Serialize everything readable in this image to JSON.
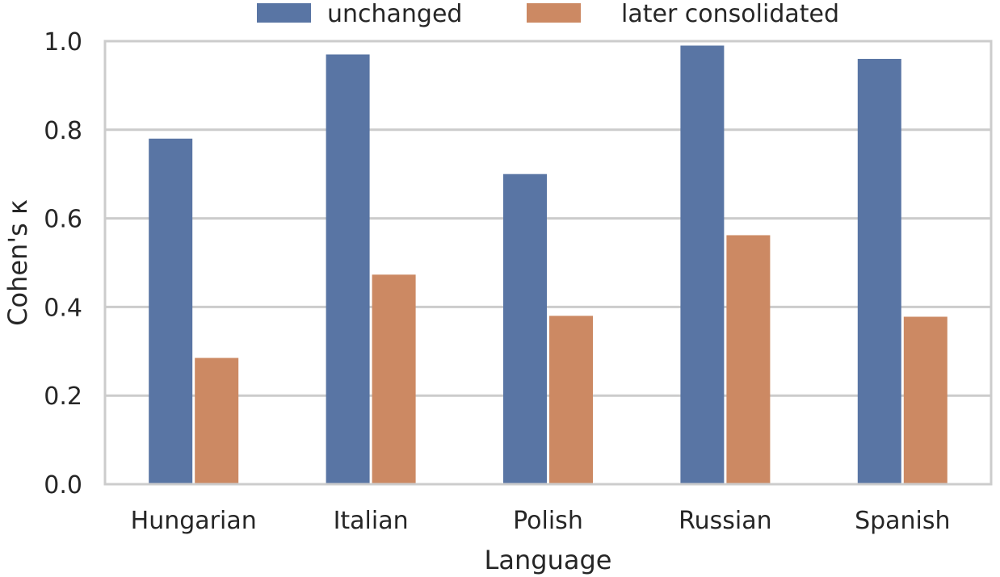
{
  "chart_data": {
    "type": "bar",
    "title": "",
    "xlabel": "Language",
    "ylabel": "Cohen's κ",
    "categories": [
      "Hungarian",
      "Italian",
      "Polish",
      "Russian",
      "Spanish"
    ],
    "series": [
      {
        "name": "unchanged",
        "color": "#5975a4",
        "values": [
          0.78,
          0.97,
          0.7,
          0.99,
          0.96
        ]
      },
      {
        "name": "later consolidated",
        "color": "#cc8963",
        "values": [
          0.285,
          0.473,
          0.38,
          0.562,
          0.378
        ]
      }
    ],
    "ylim": [
      0,
      1.0
    ],
    "yticks": [
      "0.0",
      "0.2",
      "0.4",
      "0.6",
      "0.8",
      "1.0"
    ],
    "grid": true,
    "legend": "top-center"
  }
}
